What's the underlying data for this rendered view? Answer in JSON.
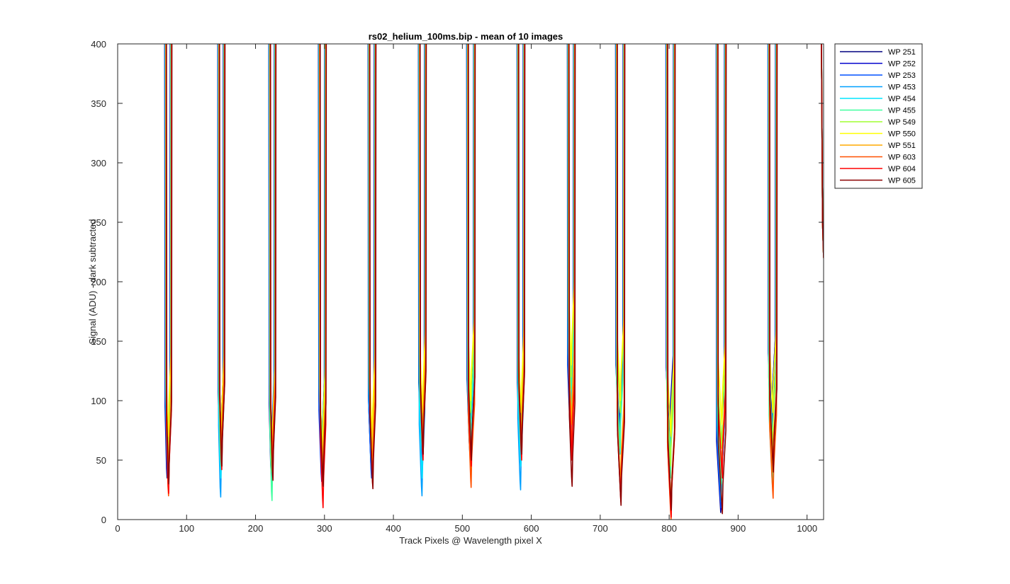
{
  "chart_data": {
    "type": "line",
    "title": "rs02_helium_100ms.bip - mean of 10 images",
    "xlabel": "Track Pixels @ Wavelength pixel X",
    "ylabel": "Signal (ADU) - dark subtracted",
    "xlim": [
      0,
      1024
    ],
    "ylim": [
      0,
      400
    ],
    "xticks": [
      0,
      100,
      200,
      300,
      400,
      500,
      600,
      700,
      800,
      900,
      1000
    ],
    "yticks": [
      0,
      50,
      100,
      150,
      200,
      250,
      300,
      350,
      400
    ],
    "grid": false,
    "legend_position": "outside-top-right",
    "gaps": [
      {
        "center": 73,
        "left": 70,
        "right": 77
      },
      {
        "center": 150,
        "left": 147,
        "right": 154
      },
      {
        "center": 224,
        "left": 221,
        "right": 228
      },
      {
        "center": 297,
        "left": 293,
        "right": 301
      },
      {
        "center": 369,
        "left": 365,
        "right": 373
      },
      {
        "center": 442,
        "left": 438,
        "right": 446
      },
      {
        "center": 512,
        "left": 508,
        "right": 517
      },
      {
        "center": 585,
        "left": 581,
        "right": 589
      },
      {
        "center": 658,
        "left": 654,
        "right": 662
      },
      {
        "center": 729,
        "left": 724,
        "right": 734
      },
      {
        "center": 802,
        "left": 797,
        "right": 807
      },
      {
        "center": 876,
        "left": 870,
        "right": 881
      },
      {
        "center": 950,
        "left": 945,
        "right": 955
      }
    ],
    "series": [
      {
        "name": "WP 251",
        "color": "#000080",
        "minima": [
          35,
          48,
          38,
          45,
          44,
          55,
          58,
          55,
          70,
          70,
          68,
          6,
          80
        ]
      },
      {
        "name": "WP 252",
        "color": "#0000cd",
        "minima": [
          38,
          50,
          40,
          32,
          40,
          60,
          65,
          60,
          75,
          75,
          65,
          8,
          82
        ]
      },
      {
        "name": "WP 253",
        "color": "#0050ff",
        "minima": [
          40,
          50,
          55,
          35,
          35,
          50,
          55,
          55,
          70,
          65,
          60,
          10,
          78
        ]
      },
      {
        "name": "WP 453",
        "color": "#00a0ff",
        "minima": [
          45,
          19,
          45,
          45,
          45,
          20,
          50,
          25,
          80,
          60,
          55,
          15,
          60
        ]
      },
      {
        "name": "WP 454",
        "color": "#00e5ff",
        "minima": [
          50,
          35,
          30,
          50,
          50,
          35,
          60,
          45,
          90,
          55,
          50,
          20,
          55
        ]
      },
      {
        "name": "WP 455",
        "color": "#40ff9f",
        "minima": [
          55,
          45,
          16,
          55,
          55,
          60,
          70,
          60,
          110,
          60,
          35,
          30,
          28
        ]
      },
      {
        "name": "WP 549",
        "color": "#a0ff30",
        "minima": [
          60,
          55,
          40,
          60,
          60,
          80,
          90,
          70,
          120,
          90,
          45,
          60,
          60
        ]
      },
      {
        "name": "WP 550",
        "color": "#ffff00",
        "minima": [
          70,
          70,
          60,
          50,
          70,
          90,
          100,
          90,
          130,
          100,
          70,
          80,
          90
        ]
      },
      {
        "name": "WP 551",
        "color": "#ffaa00",
        "minima": [
          40,
          60,
          45,
          40,
          50,
          70,
          40,
          65,
          80,
          30,
          5,
          40,
          40
        ]
      },
      {
        "name": "WP 603",
        "color": "#ff5000",
        "minima": [
          20,
          50,
          50,
          30,
          30,
          60,
          27,
          60,
          60,
          20,
          0,
          38,
          18
        ]
      },
      {
        "name": "WP 604",
        "color": "#ff0000",
        "minima": [
          22,
          42,
          35,
          10,
          30,
          50,
          45,
          50,
          50,
          15,
          2,
          35,
          42
        ]
      },
      {
        "name": "WP 605",
        "color": "#8b0000",
        "minima": [
          30,
          45,
          33,
          28,
          26,
          55,
          50,
          55,
          28,
          12,
          8,
          5,
          40
        ]
      }
    ]
  }
}
